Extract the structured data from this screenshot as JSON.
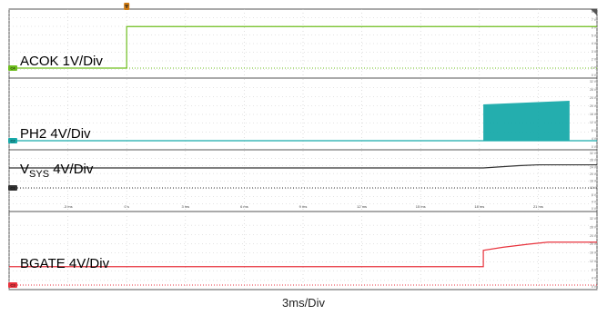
{
  "chart_data": {
    "type": "line",
    "xlabel": "3ms/Div",
    "x_ticks": [
      "-3 ms",
      "0 s",
      "3 ms",
      "6 ms",
      "9 ms",
      "12 ms",
      "15 ms",
      "18 ms",
      "21 ms"
    ],
    "xlim": [
      -6,
      24
    ],
    "x_units": "ms",
    "channels": [
      {
        "name_main": "ACOK 1V/Div",
        "name_sub": "",
        "name_tail": "",
        "marker": "C4",
        "color": "#6fbf1f",
        "kind": "line",
        "ylim": [
          0,
          8
        ],
        "right_ticks": [
          "8 V",
          "7 V",
          "6 V",
          "5 V",
          "4 V",
          "3 V",
          "2 V",
          "1 V",
          "0 V"
        ],
        "x": [
          -6,
          0,
          0,
          24
        ],
        "y": [
          0,
          0,
          6,
          6
        ]
      },
      {
        "name_main": "PH2 4V/Div",
        "name_sub": "",
        "name_tail": "",
        "marker": "C2",
        "color": "#18aaaa",
        "kind": "burst",
        "ylim": [
          0,
          32
        ],
        "right_ticks": [
          "32 V",
          "28 V",
          "24 V",
          "20 V",
          "16 V",
          "12 V",
          "8 V",
          "4 V",
          "0 V"
        ],
        "baseline": 0,
        "burst": {
          "start": 18.2,
          "end": 22.6,
          "top_start": 20,
          "top_end": 22
        }
      },
      {
        "name_main": "V",
        "name_sub": "SYS",
        "name_tail": " 4V/Div",
        "marker": "C1",
        "color": "#333333",
        "kind": "line",
        "ylim": [
          0,
          32
        ],
        "right_ticks": [
          "32 V",
          "28 V",
          "24 V",
          "20 V",
          "16 V",
          "12 V",
          "8 V",
          "4 V",
          "0 V"
        ],
        "x": [
          -6,
          18.2,
          19,
          20,
          21,
          24
        ],
        "y": [
          19,
          19,
          20,
          21.2,
          22,
          22
        ]
      },
      {
        "name_main": "BGATE 4V/Div",
        "name_sub": "",
        "name_tail": "",
        "marker": "C3",
        "color": "#e8323c",
        "kind": "line",
        "ylim": [
          0,
          32
        ],
        "right_ticks": [
          "32 V",
          "28 V",
          "24 V",
          "20 V",
          "16 V",
          "12 V",
          "8 V",
          "4 V",
          "0 V"
        ],
        "x": [
          -6,
          18.2,
          18.2,
          19.2,
          20.5,
          21.5,
          24
        ],
        "y": [
          9,
          9,
          17,
          18.5,
          20,
          21,
          21
        ]
      }
    ]
  }
}
